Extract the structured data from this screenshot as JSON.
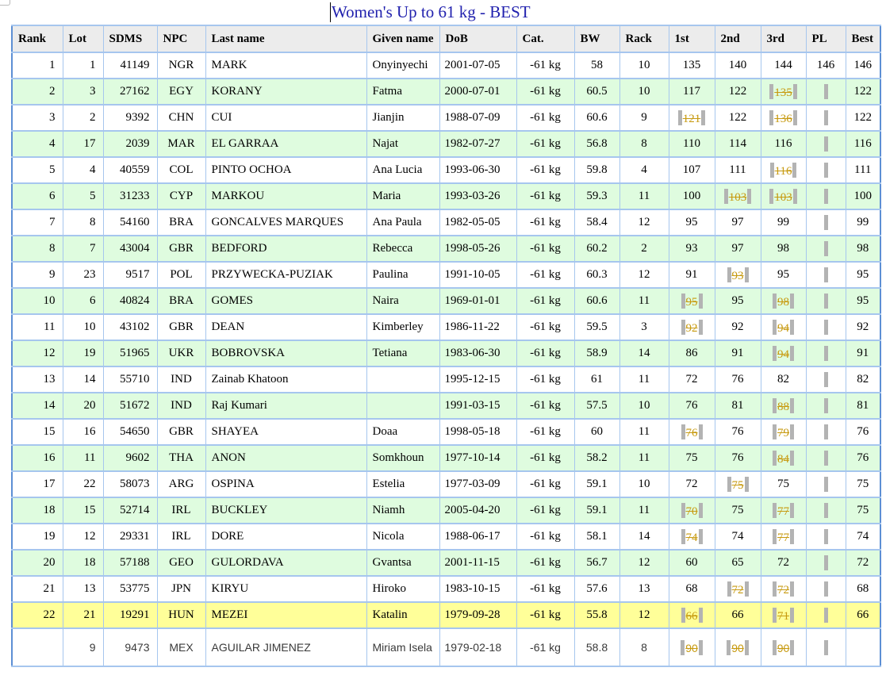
{
  "page": {
    "title": "Women's Up to 61 kg - BEST"
  },
  "colors": {
    "grid_blue": "#a6c6ee",
    "outer_blue": "#5d8fd4",
    "header_bg": "#ececec",
    "row_green": "#dffcdf",
    "row_yellow": "#ffff99",
    "fail_gold": "#c79a10",
    "bar_gray": "#b3b3b3",
    "title_blue": "#2121ae"
  },
  "table": {
    "columns": [
      "Rank",
      "Lot",
      "SDMS",
      "NPC",
      "Last name",
      "Given name",
      "DoB",
      "Cat.",
      "BW",
      "Rack",
      "1st",
      "2nd",
      "3rd",
      "PL",
      "Best"
    ],
    "rows": [
      {
        "rank": "1",
        "lot": "1",
        "sdms": "41149",
        "npc": "NGR",
        "last_name": "MARK",
        "given_name": "Onyinyechi",
        "dob": "2001-07-05",
        "cat": "-61 kg",
        "bw": "58",
        "rack": "10",
        "attempts": [
          {
            "value": "135",
            "failed": false
          },
          {
            "value": "140",
            "failed": false
          },
          {
            "value": "144",
            "failed": false
          }
        ],
        "pl": {
          "value": "146",
          "bar": false
        },
        "best": "146",
        "bg": "white",
        "left_marker": false,
        "sans": false
      },
      {
        "rank": "2",
        "lot": "3",
        "sdms": "27162",
        "npc": "EGY",
        "last_name": "KORANY",
        "given_name": "Fatma",
        "dob": "2000-07-01",
        "cat": "-61 kg",
        "bw": "60.5",
        "rack": "10",
        "attempts": [
          {
            "value": "117",
            "failed": false
          },
          {
            "value": "122",
            "failed": false
          },
          {
            "value": "135",
            "failed": true
          }
        ],
        "pl": {
          "value": "",
          "bar": true
        },
        "best": "122",
        "bg": "green",
        "left_marker": true,
        "sans": false
      },
      {
        "rank": "3",
        "lot": "2",
        "sdms": "9392",
        "npc": "CHN",
        "last_name": "CUI",
        "given_name": "Jianjin",
        "dob": "1988-07-09",
        "cat": "-61 kg",
        "bw": "60.6",
        "rack": "9",
        "attempts": [
          {
            "value": "121",
            "failed": true
          },
          {
            "value": "122",
            "failed": false
          },
          {
            "value": "136",
            "failed": true
          }
        ],
        "pl": {
          "value": "",
          "bar": true
        },
        "best": "122",
        "bg": "white",
        "left_marker": true,
        "sans": false
      },
      {
        "rank": "4",
        "lot": "17",
        "sdms": "2039",
        "npc": "MAR",
        "last_name": "EL GARRAA",
        "given_name": "Najat",
        "dob": "1982-07-27",
        "cat": "-61 kg",
        "bw": "56.8",
        "rack": "8",
        "attempts": [
          {
            "value": "110",
            "failed": false
          },
          {
            "value": "114",
            "failed": false
          },
          {
            "value": "116",
            "failed": false
          }
        ],
        "pl": {
          "value": "",
          "bar": true
        },
        "best": "116",
        "bg": "green",
        "left_marker": false,
        "sans": false
      },
      {
        "rank": "5",
        "lot": "4",
        "sdms": "40559",
        "npc": "COL",
        "last_name": "PINTO OCHOA",
        "given_name": "Ana Lucia",
        "dob": "1993-06-30",
        "cat": "-61 kg",
        "bw": "59.8",
        "rack": "4",
        "attempts": [
          {
            "value": "107",
            "failed": false
          },
          {
            "value": "111",
            "failed": false
          },
          {
            "value": "116",
            "failed": true
          }
        ],
        "pl": {
          "value": "",
          "bar": true
        },
        "best": "111",
        "bg": "white",
        "left_marker": true,
        "sans": false
      },
      {
        "rank": "6",
        "lot": "5",
        "sdms": "31233",
        "npc": "CYP",
        "last_name": "MARKOU",
        "given_name": "Maria",
        "dob": "1993-03-26",
        "cat": "-61 kg",
        "bw": "59.3",
        "rack": "11",
        "attempts": [
          {
            "value": "100",
            "failed": false
          },
          {
            "value": "103",
            "failed": true
          },
          {
            "value": "103",
            "failed": true
          }
        ],
        "pl": {
          "value": "",
          "bar": true
        },
        "best": "100",
        "bg": "green",
        "left_marker": true,
        "sans": false
      },
      {
        "rank": "7",
        "lot": "8",
        "sdms": "54160",
        "npc": "BRA",
        "last_name": "GONCALVES MARQUES",
        "given_name": "Ana Paula",
        "dob": "1982-05-05",
        "cat": "-61 kg",
        "bw": "58.4",
        "rack": "12",
        "attempts": [
          {
            "value": "95",
            "failed": false
          },
          {
            "value": "97",
            "failed": false
          },
          {
            "value": "99",
            "failed": false
          }
        ],
        "pl": {
          "value": "",
          "bar": true
        },
        "best": "99",
        "bg": "white",
        "left_marker": false,
        "sans": false
      },
      {
        "rank": "8",
        "lot": "7",
        "sdms": "43004",
        "npc": "GBR",
        "last_name": "BEDFORD",
        "given_name": "Rebecca",
        "dob": "1998-05-26",
        "cat": "-61 kg",
        "bw": "60.2",
        "rack": "2",
        "attempts": [
          {
            "value": "93",
            "failed": false
          },
          {
            "value": "97",
            "failed": false
          },
          {
            "value": "98",
            "failed": false
          }
        ],
        "pl": {
          "value": "",
          "bar": true
        },
        "best": "98",
        "bg": "green",
        "left_marker": false,
        "sans": false
      },
      {
        "rank": "9",
        "lot": "23",
        "sdms": "9517",
        "npc": "POL",
        "last_name": "PRZYWECKA-PUZIAK",
        "given_name": "Paulina",
        "dob": "1991-10-05",
        "cat": "-61 kg",
        "bw": "60.3",
        "rack": "12",
        "attempts": [
          {
            "value": "91",
            "failed": false
          },
          {
            "value": "93",
            "failed": true
          },
          {
            "value": "95",
            "failed": false
          }
        ],
        "pl": {
          "value": "",
          "bar": true
        },
        "best": "95",
        "bg": "white",
        "left_marker": true,
        "sans": false
      },
      {
        "rank": "10",
        "lot": "6",
        "sdms": "40824",
        "npc": "BRA",
        "last_name": "GOMES",
        "given_name": "Naira",
        "dob": "1969-01-01",
        "cat": "-61 kg",
        "bw": "60.6",
        "rack": "11",
        "attempts": [
          {
            "value": "95",
            "failed": true
          },
          {
            "value": "95",
            "failed": false
          },
          {
            "value": "98",
            "failed": true
          }
        ],
        "pl": {
          "value": "",
          "bar": true
        },
        "best": "95",
        "bg": "green",
        "left_marker": true,
        "sans": false
      },
      {
        "rank": "11",
        "lot": "10",
        "sdms": "43102",
        "npc": "GBR",
        "last_name": "DEAN",
        "given_name": "Kimberley",
        "dob": "1986-11-22",
        "cat": "-61 kg",
        "bw": "59.5",
        "rack": "3",
        "attempts": [
          {
            "value": "92",
            "failed": true
          },
          {
            "value": "92",
            "failed": false
          },
          {
            "value": "94",
            "failed": true
          }
        ],
        "pl": {
          "value": "",
          "bar": true
        },
        "best": "92",
        "bg": "white",
        "left_marker": true,
        "sans": false
      },
      {
        "rank": "12",
        "lot": "19",
        "sdms": "51965",
        "npc": "UKR",
        "last_name": "BOBROVSKA",
        "given_name": "Tetiana",
        "dob": "1983-06-30",
        "cat": "-61 kg",
        "bw": "58.9",
        "rack": "14",
        "attempts": [
          {
            "value": "86",
            "failed": false
          },
          {
            "value": "91",
            "failed": false
          },
          {
            "value": "94",
            "failed": true
          }
        ],
        "pl": {
          "value": "",
          "bar": true
        },
        "best": "91",
        "bg": "green",
        "left_marker": true,
        "sans": false
      },
      {
        "rank": "13",
        "lot": "14",
        "sdms": "55710",
        "npc": "IND",
        "last_name": "Zainab Khatoon",
        "given_name": "",
        "dob": "1995-12-15",
        "cat": "-61 kg",
        "bw": "61",
        "rack": "11",
        "attempts": [
          {
            "value": "72",
            "failed": false
          },
          {
            "value": "76",
            "failed": false
          },
          {
            "value": "82",
            "failed": false
          }
        ],
        "pl": {
          "value": "",
          "bar": true
        },
        "best": "82",
        "bg": "white",
        "left_marker": false,
        "sans": false
      },
      {
        "rank": "14",
        "lot": "20",
        "sdms": "51672",
        "npc": "IND",
        "last_name": "Raj Kumari",
        "given_name": "",
        "dob": "1991-03-15",
        "cat": "-61 kg",
        "bw": "57.5",
        "rack": "10",
        "attempts": [
          {
            "value": "76",
            "failed": false
          },
          {
            "value": "81",
            "failed": false
          },
          {
            "value": "88",
            "failed": true
          }
        ],
        "pl": {
          "value": "",
          "bar": true
        },
        "best": "81",
        "bg": "green",
        "left_marker": true,
        "sans": false
      },
      {
        "rank": "15",
        "lot": "16",
        "sdms": "54650",
        "npc": "GBR",
        "last_name": "SHAYEA",
        "given_name": "Doaa",
        "dob": "1998-05-18",
        "cat": "-61 kg",
        "bw": "60",
        "rack": "11",
        "attempts": [
          {
            "value": "76",
            "failed": true
          },
          {
            "value": "76",
            "failed": false
          },
          {
            "value": "79",
            "failed": true
          }
        ],
        "pl": {
          "value": "",
          "bar": true
        },
        "best": "76",
        "bg": "white",
        "left_marker": true,
        "sans": false
      },
      {
        "rank": "16",
        "lot": "11",
        "sdms": "9602",
        "npc": "THA",
        "last_name": "ANON",
        "given_name": "Somkhoun",
        "dob": "1977-10-14",
        "cat": "-61 kg",
        "bw": "58.2",
        "rack": "11",
        "attempts": [
          {
            "value": "75",
            "failed": false
          },
          {
            "value": "76",
            "failed": false
          },
          {
            "value": "84",
            "failed": true
          }
        ],
        "pl": {
          "value": "",
          "bar": true
        },
        "best": "76",
        "bg": "green",
        "left_marker": true,
        "sans": false
      },
      {
        "rank": "17",
        "lot": "22",
        "sdms": "58073",
        "npc": "ARG",
        "last_name": "OSPINA",
        "given_name": "Estelia",
        "dob": "1977-03-09",
        "cat": "-61 kg",
        "bw": "59.1",
        "rack": "10",
        "attempts": [
          {
            "value": "72",
            "failed": false
          },
          {
            "value": "75",
            "failed": true
          },
          {
            "value": "75",
            "failed": false
          }
        ],
        "pl": {
          "value": "",
          "bar": true
        },
        "best": "75",
        "bg": "white",
        "left_marker": true,
        "sans": false
      },
      {
        "rank": "18",
        "lot": "15",
        "sdms": "52714",
        "npc": "IRL",
        "last_name": "BUCKLEY",
        "given_name": "Niamh",
        "dob": "2005-04-20",
        "cat": "-61 kg",
        "bw": "59.1",
        "rack": "11",
        "attempts": [
          {
            "value": "70",
            "failed": true
          },
          {
            "value": "75",
            "failed": false
          },
          {
            "value": "77",
            "failed": true
          }
        ],
        "pl": {
          "value": "",
          "bar": true
        },
        "best": "75",
        "bg": "green",
        "left_marker": true,
        "sans": false
      },
      {
        "rank": "19",
        "lot": "12",
        "sdms": "29331",
        "npc": "IRL",
        "last_name": "DORE",
        "given_name": "Nicola",
        "dob": "1988-06-17",
        "cat": "-61 kg",
        "bw": "58.1",
        "rack": "14",
        "attempts": [
          {
            "value": "74",
            "failed": true
          },
          {
            "value": "74",
            "failed": false
          },
          {
            "value": "77",
            "failed": true
          }
        ],
        "pl": {
          "value": "",
          "bar": true
        },
        "best": "74",
        "bg": "white",
        "left_marker": true,
        "sans": false
      },
      {
        "rank": "20",
        "lot": "18",
        "sdms": "57188",
        "npc": "GEO",
        "last_name": "GULORDAVA",
        "given_name": "Gvantsa",
        "dob": "2001-11-15",
        "cat": "-61 kg",
        "bw": "56.7",
        "rack": "12",
        "attempts": [
          {
            "value": "60",
            "failed": false
          },
          {
            "value": "65",
            "failed": false
          },
          {
            "value": "72",
            "failed": false
          }
        ],
        "pl": {
          "value": "",
          "bar": true
        },
        "best": "72",
        "bg": "green",
        "left_marker": false,
        "sans": false
      },
      {
        "rank": "21",
        "lot": "13",
        "sdms": "53775",
        "npc": "JPN",
        "last_name": "KIRYU",
        "given_name": "Hiroko",
        "dob": "1983-10-15",
        "cat": "-61 kg",
        "bw": "57.6",
        "rack": "13",
        "attempts": [
          {
            "value": "68",
            "failed": false
          },
          {
            "value": "72",
            "failed": true
          },
          {
            "value": "72",
            "failed": true
          }
        ],
        "pl": {
          "value": "",
          "bar": true
        },
        "best": "68",
        "bg": "white",
        "left_marker": true,
        "sans": false
      },
      {
        "rank": "22",
        "lot": "21",
        "sdms": "19291",
        "npc": "HUN",
        "last_name": "MEZEI",
        "given_name": "Katalin",
        "dob": "1979-09-28",
        "cat": "-61 kg",
        "bw": "55.8",
        "rack": "12",
        "attempts": [
          {
            "value": "66",
            "failed": true
          },
          {
            "value": "66",
            "failed": false
          },
          {
            "value": "71",
            "failed": true
          }
        ],
        "pl": {
          "value": "",
          "bar": true
        },
        "best": "66",
        "bg": "yellow",
        "left_marker": true,
        "sans": false
      },
      {
        "rank": "",
        "lot": "9",
        "sdms": "9473",
        "npc": "MEX",
        "last_name": "AGUILAR JIMENEZ",
        "given_name": "Miriam Isela",
        "dob": "1979-02-18",
        "cat": "-61 kg",
        "bw": "58.8",
        "rack": "8",
        "attempts": [
          {
            "value": "90",
            "failed": true
          },
          {
            "value": "90",
            "failed": true
          },
          {
            "value": "90",
            "failed": true
          }
        ],
        "pl": {
          "value": "",
          "bar": true
        },
        "best": "",
        "bg": "white",
        "left_marker": true,
        "sans": true
      }
    ]
  }
}
